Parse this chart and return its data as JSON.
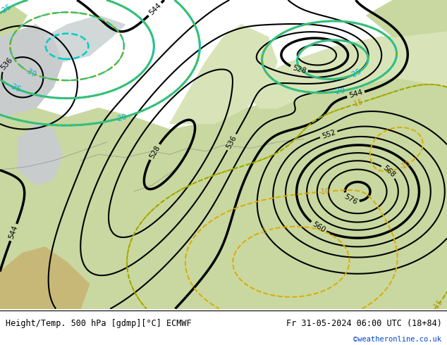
{
  "title_left": "Height/Temp. 500 hPa [gdmp][°C] ECMWF",
  "title_right": "Fr 31-05-2024 06:00 UTC (18+84)",
  "watermark": "©weatheronline.co.uk",
  "sea_color": "#e8eef0",
  "land_color": "#c8d8a0",
  "land_color_dark": "#b8c890",
  "land_color_light": "#d8e4b8",
  "gray_land": "#c8c8c8",
  "bg_top": "#dce8ec",
  "text_color_blue": "#0044cc"
}
